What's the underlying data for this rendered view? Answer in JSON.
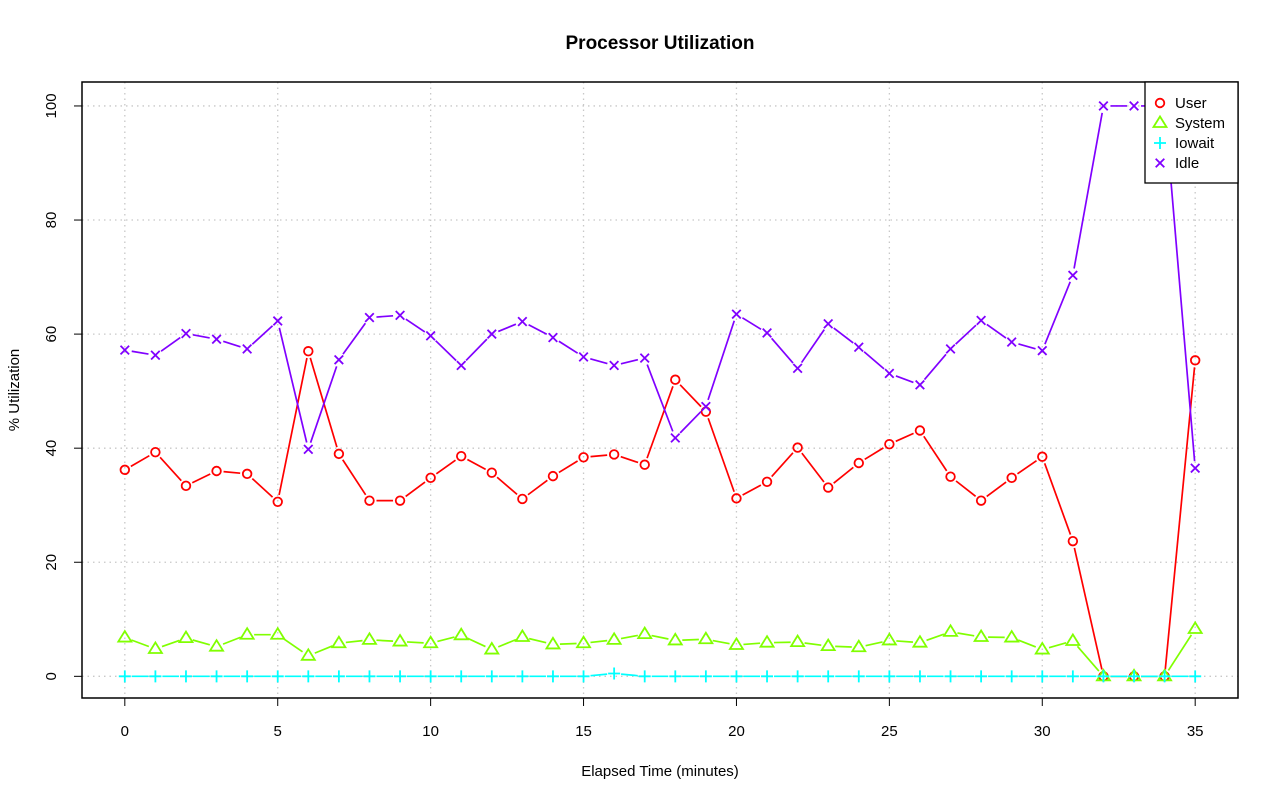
{
  "chart_data": {
    "type": "line",
    "title": "Processor Utilization",
    "xlabel": "Elapsed Time (minutes)",
    "ylabel": "% Utilization",
    "xlim": [
      -1.4,
      36.4
    ],
    "ylim": [
      -3.8,
      104.2
    ],
    "x_ticks": [
      0,
      5,
      10,
      15,
      20,
      25,
      30,
      35
    ],
    "y_ticks": [
      0,
      20,
      40,
      60,
      80,
      100
    ],
    "grid": true,
    "legend_position": "top-right",
    "x": [
      0,
      1,
      2,
      3,
      4,
      5,
      6,
      7,
      8,
      9,
      10,
      11,
      12,
      13,
      14,
      15,
      16,
      17,
      18,
      19,
      20,
      21,
      22,
      23,
      24,
      25,
      26,
      27,
      28,
      29,
      30,
      31,
      32,
      33,
      34,
      35
    ],
    "series": [
      {
        "name": "User",
        "color": "#ff0000",
        "marker": "circle",
        "values": [
          36.2,
          39.3,
          33.4,
          36.0,
          35.5,
          30.6,
          57.0,
          39.0,
          30.8,
          30.8,
          34.8,
          38.6,
          35.7,
          31.1,
          35.1,
          38.4,
          38.9,
          37.1,
          52.0,
          46.4,
          31.2,
          34.1,
          40.1,
          33.1,
          37.4,
          40.7,
          43.1,
          35.0,
          30.8,
          34.8,
          38.5,
          23.7,
          0,
          0,
          0,
          55.4
        ]
      },
      {
        "name": "System",
        "color": "#80ff00",
        "marker": "triangle",
        "values": [
          6.8,
          4.8,
          6.7,
          5.2,
          7.3,
          7.3,
          3.6,
          5.8,
          6.4,
          6.1,
          5.8,
          7.2,
          4.7,
          6.9,
          5.6,
          5.8,
          6.4,
          7.4,
          6.3,
          6.5,
          5.5,
          5.9,
          6.0,
          5.3,
          5.1,
          6.3,
          5.9,
          7.8,
          6.9,
          6.8,
          4.7,
          6.2,
          0,
          0,
          0,
          8.3
        ]
      },
      {
        "name": "Iowait",
        "color": "#00ffff",
        "marker": "plus",
        "values": [
          0,
          0,
          0,
          0,
          0,
          0,
          0,
          0,
          0,
          0,
          0,
          0,
          0,
          0,
          0,
          0,
          0.5,
          0,
          0,
          0,
          0,
          0,
          0,
          0,
          0,
          0,
          0,
          0,
          0,
          0,
          0,
          0,
          0,
          0,
          0,
          0
        ]
      },
      {
        "name": "Idle",
        "color": "#8000ff",
        "marker": "x",
        "values": [
          57.2,
          56.3,
          60.1,
          59.1,
          57.4,
          62.3,
          39.8,
          55.5,
          62.9,
          63.3,
          59.7,
          54.5,
          60.0,
          62.2,
          59.4,
          56.0,
          54.5,
          55.8,
          41.8,
          47.3,
          63.5,
          60.2,
          54.0,
          61.8,
          57.7,
          53.1,
          51.1,
          57.4,
          62.4,
          58.6,
          57.1,
          70.3,
          100,
          100,
          100,
          36.5
        ]
      }
    ]
  }
}
